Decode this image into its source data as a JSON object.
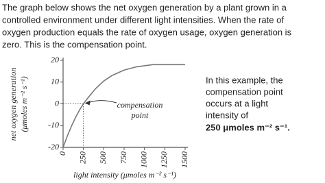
{
  "intro_lines": [
    "The graph below shows the net oxygen generation by a plant grown in a",
    "controlled environment under different light intensities.  When the rate of",
    "oxygen production equals the rate of oxygen usage, oxygen generation is",
    "zero.  This is the compensation point."
  ],
  "side_lines": [
    "In this example, the",
    "compensation point",
    "occurs at a light",
    "intensity of",
    "250 μmoles m⁻² s⁻¹."
  ],
  "chart_data": {
    "type": "line",
    "y_label_lines": [
      "net oxygen generation",
      "(μmoles m⁻² s⁻¹)"
    ],
    "x_label": "light intensity (μmoles m⁻² s⁻¹)",
    "annotation_lines": [
      "compensation",
      "point"
    ],
    "x": [
      0,
      50,
      100,
      150,
      200,
      250,
      300,
      400,
      500,
      600,
      750,
      900,
      1000,
      1100,
      1250,
      1500
    ],
    "series": [
      {
        "name": "net oxygen generation",
        "color": "#777777",
        "values": [
          -20,
          -15,
          -10.5,
          -6.5,
          -3,
          0,
          2.5,
          7,
          10.5,
          13,
          15.5,
          17,
          17.5,
          18,
          18,
          18
        ]
      }
    ],
    "xlim": [
      0,
      1500
    ],
    "xticks": [
      0,
      250,
      500,
      750,
      1000,
      1250,
      1500
    ],
    "ylim": [
      -20,
      20
    ],
    "yticks": [
      20,
      10,
      0,
      -10,
      -20
    ]
  }
}
